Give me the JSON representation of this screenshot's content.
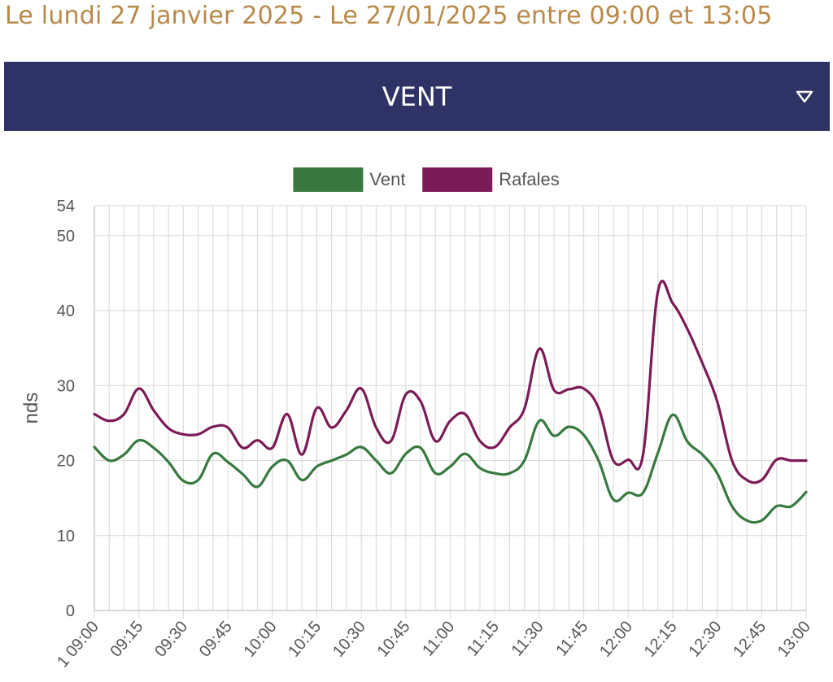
{
  "header": {
    "title": "Le lundi 27 janvier 2025 - Le 27/01/2025 entre 09:00 et 13:05"
  },
  "section": {
    "title": "VENT",
    "icon": "triangle-down-icon"
  },
  "chart_data": {
    "type": "line",
    "ylabel": "nds",
    "ylim": [
      0,
      54
    ],
    "yticks": [
      0,
      10,
      20,
      30,
      40,
      50,
      54
    ],
    "xlim": [
      "09:00",
      "13:00"
    ],
    "xtick_labels": [
      "1 09:00",
      "09:15",
      "09:30",
      "09:45",
      "10:00",
      "10:15",
      "10:30",
      "10:45",
      "11:00",
      "11:15",
      "11:30",
      "11:45",
      "12:00",
      "12:15",
      "12:30",
      "12:45",
      "13:00"
    ],
    "grid": true,
    "legend_position": "top",
    "x": [
      "09:00",
      "09:05",
      "09:10",
      "09:15",
      "09:20",
      "09:25",
      "09:30",
      "09:35",
      "09:40",
      "09:45",
      "09:50",
      "09:55",
      "10:00",
      "10:05",
      "10:10",
      "10:15",
      "10:20",
      "10:25",
      "10:30",
      "10:35",
      "10:40",
      "10:45",
      "10:50",
      "10:55",
      "11:00",
      "11:05",
      "11:10",
      "11:15",
      "11:20",
      "11:25",
      "11:30",
      "11:35",
      "11:40",
      "11:45",
      "11:50",
      "11:55",
      "12:00",
      "12:05",
      "12:10",
      "12:15",
      "12:20",
      "12:25",
      "12:30",
      "12:35",
      "12:40",
      "12:45",
      "12:50",
      "12:55",
      "13:00"
    ],
    "series": [
      {
        "name": "Vent",
        "color": "#37793f",
        "values": [
          21.8,
          20.0,
          20.8,
          22.7,
          21.7,
          19.8,
          17.3,
          17.4,
          20.9,
          19.8,
          18.2,
          16.5,
          19.2,
          20.0,
          17.4,
          19.2,
          20.0,
          20.8,
          21.8,
          20.0,
          18.3,
          20.9,
          21.7,
          18.3,
          19.2,
          20.9,
          19.0,
          18.3,
          18.3,
          20.0,
          25.3,
          23.3,
          24.5,
          23.4,
          20.0,
          14.8,
          15.7,
          15.7,
          21.0,
          26.1,
          22.5,
          20.8,
          18.3,
          13.9,
          12.0,
          12.0,
          13.9,
          13.9,
          15.8
        ]
      },
      {
        "name": "Rafales",
        "color": "#7b1b58",
        "values": [
          26.2,
          25.3,
          26.2,
          29.6,
          26.7,
          24.3,
          23.5,
          23.5,
          24.5,
          24.4,
          21.7,
          22.7,
          21.7,
          26.2,
          20.8,
          27.0,
          24.4,
          26.7,
          29.6,
          24.4,
          22.6,
          28.8,
          27.9,
          22.6,
          25.3,
          26.2,
          22.6,
          21.8,
          24.4,
          26.9,
          34.9,
          29.4,
          29.5,
          29.6,
          27.0,
          20.0,
          20.1,
          20.8,
          42.5,
          41.0,
          37.5,
          33.0,
          27.9,
          20.0,
          17.4,
          17.4,
          20.1,
          20.0,
          20.0
        ]
      }
    ]
  }
}
